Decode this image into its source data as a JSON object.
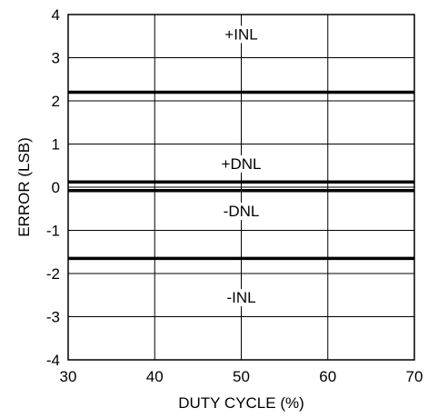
{
  "chart_data": {
    "type": "line",
    "title": "",
    "xlabel": "DUTY CYCLE (%)",
    "ylabel": "ERROR (LSB)",
    "xlim": [
      30,
      70
    ],
    "ylim": [
      -4,
      4
    ],
    "x_ticks": [
      30,
      40,
      50,
      60,
      70
    ],
    "y_ticks": [
      4,
      3,
      2,
      1,
      0,
      -1,
      -2,
      -3,
      -4
    ],
    "x_tick_labels": [
      "30",
      "40",
      "50",
      "60",
      "70"
    ],
    "y_tick_labels": [
      "4",
      "3",
      "2",
      "1",
      "0",
      "-1",
      "-2",
      "-3",
      "-4"
    ],
    "grid": true,
    "legend": "none",
    "series": [
      {
        "name": "+INL",
        "x": [
          30,
          70
        ],
        "y": [
          2.2,
          2.2
        ],
        "label_x": 50,
        "label_y": 3.55
      },
      {
        "name": "+DNL",
        "x": [
          30,
          70
        ],
        "y": [
          0.12,
          0.12
        ],
        "label_x": 50,
        "label_y": 0.55
      },
      {
        "name": "-DNL",
        "x": [
          30,
          70
        ],
        "y": [
          -0.08,
          -0.08
        ],
        "label_x": 50,
        "label_y": -0.55
      },
      {
        "name": "-INL",
        "x": [
          30,
          70
        ],
        "y": [
          -1.65,
          -1.65
        ],
        "label_x": 50,
        "label_y": -2.55
      }
    ],
    "line_color": "#000000"
  }
}
